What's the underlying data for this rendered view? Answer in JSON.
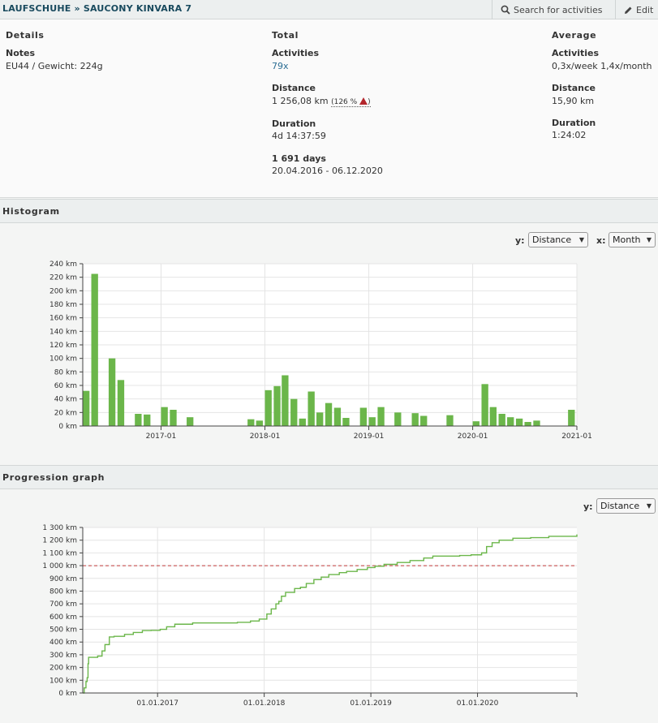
{
  "header": {
    "breadcrumb": "LAUFSCHUHE » SAUCONY KINVARA 7",
    "search_label": "Search for activities",
    "edit_label": "Edit"
  },
  "details": {
    "heading": "Details",
    "notes_label": "Notes",
    "notes_value": "EU44 / Gewicht: 224g"
  },
  "total": {
    "heading": "Total",
    "activities_label": "Activities",
    "activities_value": "79x",
    "distance_label": "Distance",
    "distance_value": "1 256,08 km",
    "distance_percent": "(126 %",
    "distance_percent_close": ")",
    "duration_label": "Duration",
    "duration_value": "4d 14:37:59",
    "days_label": "1 691 days",
    "date_range": "20.04.2016 - 06.12.2020"
  },
  "average": {
    "heading": "Average",
    "activities_label": "Activities",
    "activities_value": "0,3x/week 1,4x/month",
    "distance_label": "Distance",
    "distance_value": "15,90 km",
    "duration_label": "Duration",
    "duration_value": "1:24:02"
  },
  "histogram": {
    "heading": "Histogram",
    "y_label": "y:",
    "y_value": "Distance",
    "x_label": "x:",
    "x_value": "Month"
  },
  "progression": {
    "heading": "Progression graph",
    "y_label": "y:",
    "y_value": "Distance"
  },
  "colors": {
    "bar": "#6bb64a",
    "line": "#6bb64a",
    "target": "#c33c3c"
  },
  "chart_data": [
    {
      "type": "bar",
      "y_ticks": [
        "0 km",
        "20 km",
        "40 km",
        "60 km",
        "80 km",
        "100 km",
        "120 km",
        "140 km",
        "160 km",
        "180 km",
        "200 km",
        "220 km",
        "240 km"
      ],
      "ylim": [
        0,
        240
      ],
      "x_ticks": [
        "2017-01",
        "2018-01",
        "2019-01",
        "2020-01",
        "2021-01"
      ],
      "categories": [
        "2016-04",
        "2016-05",
        "2016-06",
        "2016-07",
        "2016-08",
        "2016-09",
        "2016-10",
        "2016-11",
        "2016-12",
        "2017-01",
        "2017-02",
        "2017-03",
        "2017-04",
        "2017-05",
        "2017-06",
        "2017-07",
        "2017-08",
        "2017-09",
        "2017-10",
        "2017-11",
        "2017-12",
        "2018-01",
        "2018-02",
        "2018-03",
        "2018-04",
        "2018-05",
        "2018-06",
        "2018-07",
        "2018-08",
        "2018-09",
        "2018-10",
        "2018-11",
        "2018-12",
        "2019-01",
        "2019-02",
        "2019-03",
        "2019-04",
        "2019-05",
        "2019-06",
        "2019-07",
        "2019-08",
        "2019-09",
        "2019-10",
        "2019-11",
        "2019-12",
        "2020-01",
        "2020-02",
        "2020-03",
        "2020-04",
        "2020-05",
        "2020-06",
        "2020-07",
        "2020-08",
        "2020-09",
        "2020-10",
        "2020-11",
        "2020-12"
      ],
      "values": [
        52,
        225,
        0,
        100,
        68,
        0,
        18,
        17,
        0,
        28,
        24,
        0,
        13,
        0,
        0,
        0,
        0,
        0,
        0,
        10,
        8,
        53,
        59,
        75,
        40,
        11,
        51,
        20,
        34,
        27,
        12,
        0,
        27,
        13,
        28,
        0,
        20,
        0,
        19,
        15,
        0,
        0,
        16,
        0,
        0,
        7,
        62,
        28,
        18,
        13,
        11,
        6,
        8,
        0,
        0,
        0,
        24
      ]
    },
    {
      "type": "line",
      "y_ticks": [
        "0 km",
        "100 km",
        "200 km",
        "300 km",
        "400 km",
        "500 km",
        "600 km",
        "700 km",
        "800 km",
        "900 km",
        "1 000 km",
        "1 100 km",
        "1 200 km",
        "1 300 km"
      ],
      "ylim": [
        0,
        1300
      ],
      "x_ticks": [
        "01.01.2017",
        "01.01.2018",
        "01.01.2019",
        "01.01.2020"
      ],
      "target": 1000,
      "x_range": [
        "2016-04-20",
        "2020-12-06"
      ],
      "series": [
        {
          "points": [
            [
              "2016-04-20",
              0
            ],
            [
              "2016-04-25",
              40
            ],
            [
              "2016-05-01",
              90
            ],
            [
              "2016-05-05",
              120
            ],
            [
              "2016-05-08",
              230
            ],
            [
              "2016-05-10",
              280
            ],
            [
              "2016-06-10",
              290
            ],
            [
              "2016-06-25",
              330
            ],
            [
              "2016-07-05",
              380
            ],
            [
              "2016-07-20",
              440
            ],
            [
              "2016-08-05",
              445
            ],
            [
              "2016-09-10",
              460
            ],
            [
              "2016-10-10",
              475
            ],
            [
              "2016-11-10",
              490
            ],
            [
              "2016-12-10",
              492
            ],
            [
              "2017-01-10",
              500
            ],
            [
              "2017-02-01",
              520
            ],
            [
              "2017-03-01",
              540
            ],
            [
              "2017-05-01",
              550
            ],
            [
              "2017-10-01",
              555
            ],
            [
              "2017-11-15",
              565
            ],
            [
              "2017-12-15",
              580
            ],
            [
              "2018-01-10",
              620
            ],
            [
              "2018-01-25",
              660
            ],
            [
              "2018-02-10",
              700
            ],
            [
              "2018-02-20",
              720
            ],
            [
              "2018-03-01",
              760
            ],
            [
              "2018-03-15",
              790
            ],
            [
              "2018-04-15",
              820
            ],
            [
              "2018-05-05",
              830
            ],
            [
              "2018-05-25",
              860
            ],
            [
              "2018-06-20",
              890
            ],
            [
              "2018-07-15",
              910
            ],
            [
              "2018-08-10",
              930
            ],
            [
              "2018-09-15",
              945
            ],
            [
              "2018-10-10",
              955
            ],
            [
              "2018-11-15",
              970
            ],
            [
              "2018-12-20",
              985
            ],
            [
              "2019-01-15",
              995
            ],
            [
              "2019-02-15",
              1010
            ],
            [
              "2019-04-01",
              1025
            ],
            [
              "2019-05-15",
              1040
            ],
            [
              "2019-07-01",
              1060
            ],
            [
              "2019-08-01",
              1075
            ],
            [
              "2019-11-01",
              1080
            ],
            [
              "2019-12-10",
              1085
            ],
            [
              "2020-01-15",
              1100
            ],
            [
              "2020-02-01",
              1150
            ],
            [
              "2020-02-20",
              1180
            ],
            [
              "2020-03-15",
              1200
            ],
            [
              "2020-05-01",
              1215
            ],
            [
              "2020-07-01",
              1220
            ],
            [
              "2020-09-01",
              1230
            ],
            [
              "2020-12-06",
              1245
            ]
          ]
        }
      ]
    }
  ]
}
